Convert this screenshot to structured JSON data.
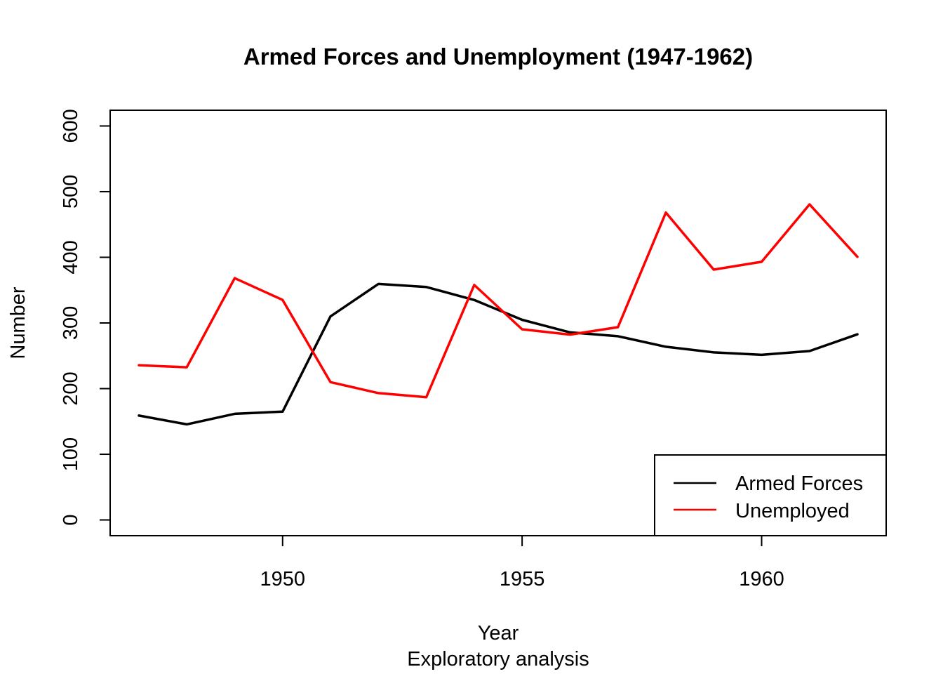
{
  "chart_data": {
    "type": "line",
    "title": "Armed Forces and Unemployment (1947-1962)",
    "xlabel": "Year",
    "sub": "Exploratory analysis",
    "ylabel": "Number",
    "x": [
      1947,
      1948,
      1949,
      1950,
      1951,
      1952,
      1953,
      1954,
      1955,
      1956,
      1957,
      1958,
      1959,
      1960,
      1961,
      1962
    ],
    "xlim": [
      1946.4,
      1962.6
    ],
    "ylim": [
      -24,
      624
    ],
    "xticks": [
      1950,
      1955,
      1960
    ],
    "yticks": [
      0,
      100,
      200,
      300,
      400,
      500,
      600
    ],
    "grid": false,
    "legend_position": "bottom-right",
    "series": [
      {
        "name": "Armed Forces",
        "color": "#000000",
        "values": [
          159.0,
          145.6,
          161.6,
          165.0,
          309.9,
          359.4,
          354.7,
          335.0,
          304.8,
          285.7,
          279.8,
          263.7,
          255.2,
          251.4,
          257.2,
          282.7
        ]
      },
      {
        "name": "Unemployed",
        "color": "#ff0000",
        "values": [
          235.6,
          232.5,
          368.2,
          335.1,
          209.9,
          193.2,
          187.0,
          357.8,
          290.4,
          282.2,
          293.6,
          468.1,
          381.3,
          393.1,
          480.6,
          400.7
        ]
      }
    ]
  }
}
